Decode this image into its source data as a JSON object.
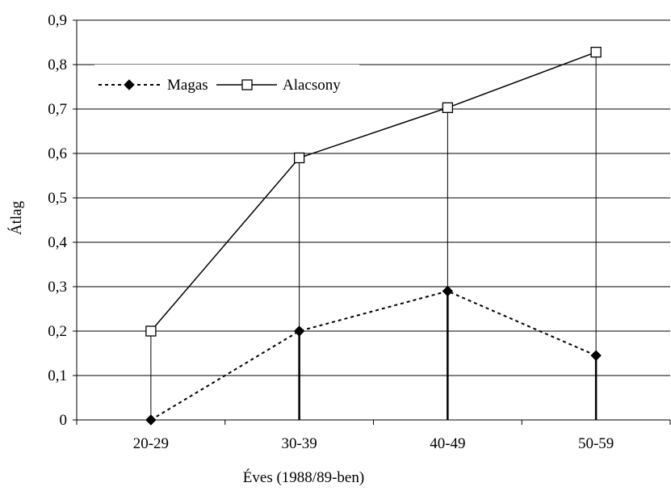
{
  "chart_data": {
    "type": "line",
    "title": "",
    "xlabel": "Éves (1988/89-ben)",
    "ylabel": "Átlag",
    "categories": [
      "20-29",
      "30-39",
      "40-49",
      "50-59"
    ],
    "ylim": [
      0,
      0.9
    ],
    "yticks": [
      0,
      0.1,
      0.2,
      0.3,
      0.4,
      0.5,
      0.6,
      0.7,
      0.8,
      0.9
    ],
    "ytick_labels": [
      "0",
      "0,1",
      "0,2",
      "0,3",
      "0,4",
      "0,5",
      "0,6",
      "0,7",
      "0,8",
      "0,9"
    ],
    "grid": "horizontal",
    "legend_position": "top-left",
    "series": [
      {
        "name": "Magas",
        "values": [
          0.0,
          0.2,
          0.29,
          0.145
        ],
        "line_style": "dotted",
        "marker": "filled-diamond",
        "color": "#000000"
      },
      {
        "name": "Alacsony",
        "values": [
          0.2,
          0.59,
          0.703,
          0.828
        ],
        "line_style": "solid",
        "marker": "open-square",
        "color": "#000000"
      }
    ]
  }
}
